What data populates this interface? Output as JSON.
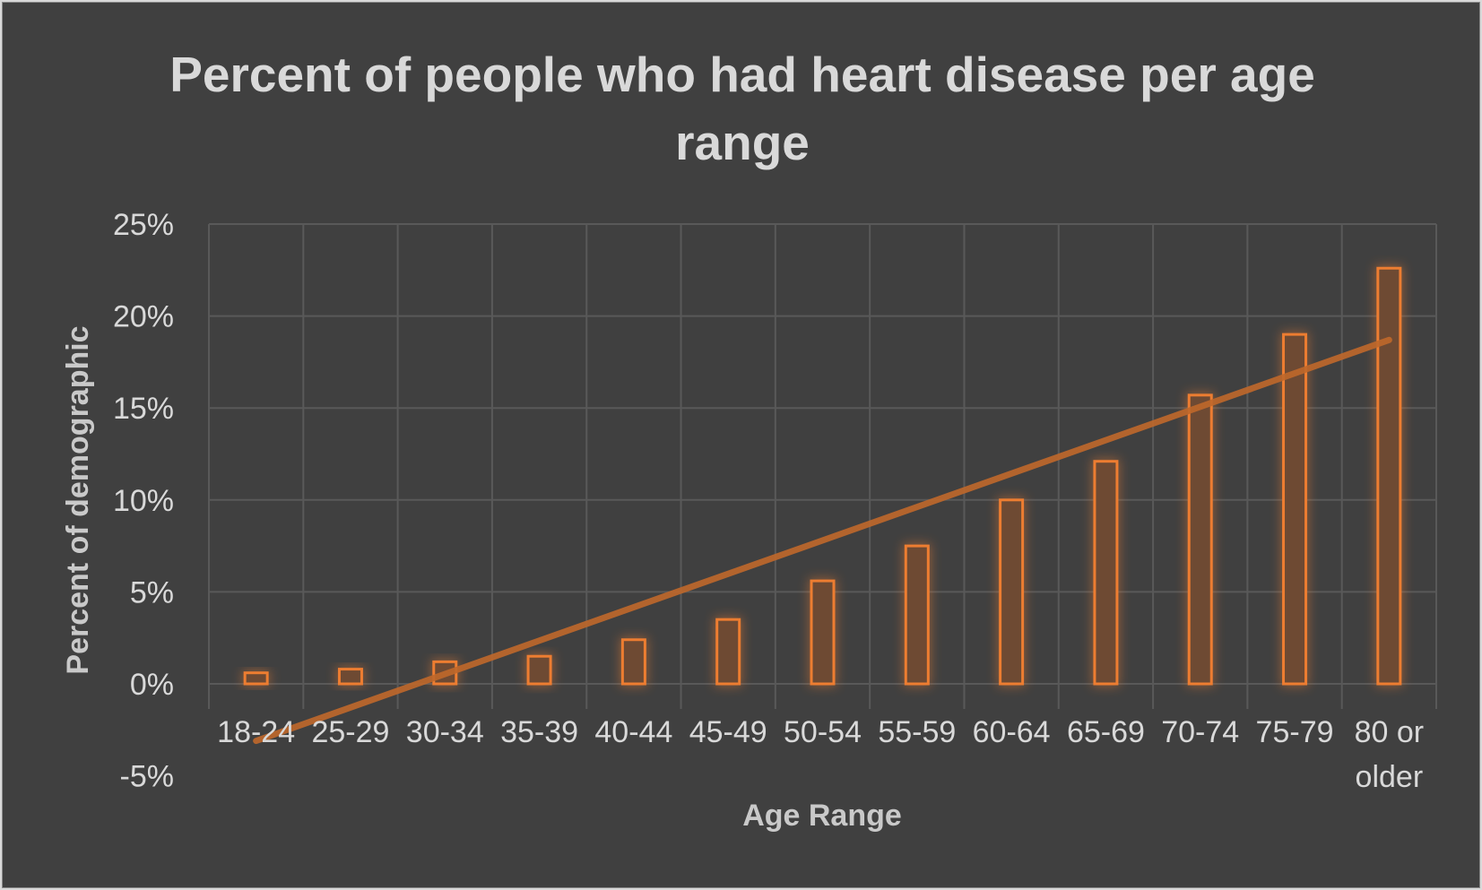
{
  "chart_data": {
    "type": "bar",
    "title": "Percent of people who had heart disease per age range",
    "xlabel": "Age Range",
    "ylabel": "Percent of demographic",
    "categories": [
      "18-24",
      "25-29",
      "30-34",
      "35-39",
      "40-44",
      "45-49",
      "50-54",
      "55-59",
      "60-64",
      "65-69",
      "70-74",
      "75-79",
      "80 or older"
    ],
    "series": [
      {
        "values": [
          0.6,
          0.8,
          1.2,
          1.5,
          2.4,
          3.5,
          5.6,
          7.5,
          10.0,
          12.1,
          15.7,
          19.0,
          22.6
        ],
        "color": "#ed7d31"
      }
    ],
    "trendline": {
      "type": "linear",
      "start": -3.1,
      "end": 18.7,
      "color": "#c0682b"
    },
    "y_ticks": [
      "-5%",
      "0%",
      "5%",
      "10%",
      "15%",
      "20%",
      "25%"
    ],
    "ylim": [
      -5,
      25
    ],
    "grid": true,
    "legend": "none",
    "colors": {
      "background": "#404040",
      "gridline": "#595959",
      "text": "#d9d9d9"
    }
  }
}
